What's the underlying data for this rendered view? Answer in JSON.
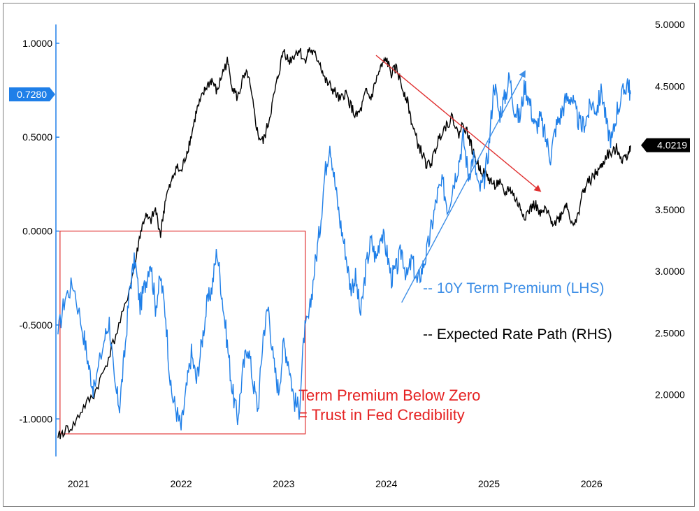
{
  "chart_data": {
    "type": "line",
    "title": "",
    "xlabel": "",
    "x_ticks": [
      "2021",
      "2022",
      "2023",
      "2024",
      "2025",
      "2026"
    ],
    "x_range": [
      2020.83,
      2026.45
    ],
    "left_axis": {
      "ticks": [
        "1.0000",
        "0.5000",
        "0.0000",
        "-0.5000",
        "-1.0000"
      ],
      "range": [
        -1.2,
        1.1
      ],
      "color": "#1f7fe8"
    },
    "right_axis": {
      "ticks": [
        "5.0000",
        "4.5000",
        "4.0000",
        "3.5000",
        "3.0000",
        "2.5000",
        "2.0000"
      ],
      "range": [
        1.5,
        5.0
      ]
    },
    "last_value_labels": {
      "left": "0.7280",
      "right": "4.0219"
    },
    "series": [
      {
        "name": "-- 10Y Term Premium (LHS)",
        "axis": "left",
        "color": "#1f7fe8",
        "points": [
          [
            2020.85,
            -0.55
          ],
          [
            2020.92,
            -0.35
          ],
          [
            2021.0,
            -0.28
          ],
          [
            2021.1,
            -0.55
          ],
          [
            2021.15,
            -0.72
          ],
          [
            2021.2,
            -0.85
          ],
          [
            2021.3,
            -0.58
          ],
          [
            2021.35,
            -0.48
          ],
          [
            2021.4,
            -0.82
          ],
          [
            2021.45,
            -0.93
          ],
          [
            2021.5,
            -0.65
          ],
          [
            2021.55,
            -0.3
          ],
          [
            2021.6,
            -0.15
          ],
          [
            2021.65,
            -0.4
          ],
          [
            2021.7,
            -0.28
          ],
          [
            2021.75,
            -0.15
          ],
          [
            2021.8,
            -0.4
          ],
          [
            2021.85,
            -0.25
          ],
          [
            2021.9,
            -0.45
          ],
          [
            2021.95,
            -0.85
          ],
          [
            2022.0,
            -0.95
          ],
          [
            2022.05,
            -1.05
          ],
          [
            2022.1,
            -0.85
          ],
          [
            2022.15,
            -0.65
          ],
          [
            2022.2,
            -0.8
          ],
          [
            2022.25,
            -0.6
          ],
          [
            2022.3,
            -0.4
          ],
          [
            2022.35,
            -0.3
          ],
          [
            2022.4,
            -0.1
          ],
          [
            2022.45,
            -0.35
          ],
          [
            2022.5,
            -0.6
          ],
          [
            2022.55,
            -0.85
          ],
          [
            2022.6,
            -1.0
          ],
          [
            2022.65,
            -0.75
          ],
          [
            2022.7,
            -0.6
          ],
          [
            2022.75,
            -0.8
          ],
          [
            2022.8,
            -0.95
          ],
          [
            2022.85,
            -0.55
          ],
          [
            2022.9,
            -0.4
          ],
          [
            2022.95,
            -0.7
          ],
          [
            2023.0,
            -0.85
          ],
          [
            2023.05,
            -0.6
          ],
          [
            2023.1,
            -0.7
          ],
          [
            2023.15,
            -0.9
          ],
          [
            2023.2,
            -0.95
          ],
          [
            2023.25,
            -0.55
          ],
          [
            2023.3,
            -0.45
          ],
          [
            2023.35,
            -0.2
          ],
          [
            2023.4,
            0.0
          ],
          [
            2023.45,
            0.3
          ],
          [
            2023.5,
            0.48
          ],
          [
            2023.55,
            0.25
          ],
          [
            2023.6,
            0.05
          ],
          [
            2023.65,
            -0.1
          ],
          [
            2023.7,
            -0.3
          ],
          [
            2023.75,
            -0.25
          ],
          [
            2023.8,
            -0.45
          ],
          [
            2023.85,
            -0.2
          ],
          [
            2023.9,
            -0.05
          ],
          [
            2023.95,
            -0.15
          ],
          [
            2024.0,
            0.0
          ],
          [
            2024.05,
            -0.1
          ],
          [
            2024.1,
            -0.25
          ],
          [
            2024.15,
            -0.2
          ],
          [
            2024.2,
            -0.1
          ],
          [
            2024.25,
            -0.25
          ],
          [
            2024.3,
            -0.15
          ],
          [
            2024.35,
            -0.28
          ],
          [
            2024.4,
            -0.2
          ],
          [
            2024.45,
            -0.1
          ],
          [
            2024.5,
            0.05
          ],
          [
            2024.55,
            0.2
          ],
          [
            2024.6,
            0.25
          ],
          [
            2024.65,
            0.12
          ],
          [
            2024.7,
            0.25
          ],
          [
            2024.75,
            0.35
          ],
          [
            2024.8,
            0.5
          ],
          [
            2024.85,
            0.3
          ],
          [
            2024.9,
            0.4
          ],
          [
            2024.95,
            0.22
          ],
          [
            2025.0,
            0.25
          ],
          [
            2025.05,
            0.45
          ],
          [
            2025.1,
            0.8
          ],
          [
            2025.15,
            0.62
          ],
          [
            2025.2,
            0.7
          ],
          [
            2025.25,
            0.82
          ],
          [
            2025.3,
            0.65
          ],
          [
            2025.35,
            0.6
          ],
          [
            2025.4,
            0.78
          ],
          [
            2025.45,
            0.68
          ],
          [
            2025.5,
            0.55
          ],
          [
            2025.55,
            0.6
          ],
          [
            2025.6,
            0.5
          ],
          [
            2025.65,
            0.4
          ],
          [
            2025.7,
            0.55
          ],
          [
            2025.75,
            0.62
          ],
          [
            2025.8,
            0.7
          ],
          [
            2025.85,
            0.72
          ],
          [
            2025.9,
            0.62
          ],
          [
            2025.95,
            0.55
          ],
          [
            2026.0,
            0.6
          ],
          [
            2026.05,
            0.68
          ],
          [
            2026.1,
            0.65
          ],
          [
            2026.15,
            0.75
          ],
          [
            2026.2,
            0.55
          ],
          [
            2026.25,
            0.48
          ],
          [
            2026.3,
            0.65
          ],
          [
            2026.35,
            0.72
          ],
          [
            2026.4,
            0.8
          ],
          [
            2026.43,
            0.73
          ]
        ]
      },
      {
        "name": "-- Expected Rate Path (RHS)",
        "axis": "right",
        "color": "#000000",
        "points": [
          [
            2020.85,
            1.65
          ],
          [
            2020.9,
            1.7
          ],
          [
            2021.0,
            1.75
          ],
          [
            2021.1,
            1.9
          ],
          [
            2021.2,
            2.0
          ],
          [
            2021.3,
            2.2
          ],
          [
            2021.4,
            2.45
          ],
          [
            2021.5,
            2.7
          ],
          [
            2021.6,
            3.05
          ],
          [
            2021.65,
            3.3
          ],
          [
            2021.7,
            3.45
          ],
          [
            2021.75,
            3.4
          ],
          [
            2021.8,
            3.5
          ],
          [
            2021.85,
            3.3
          ],
          [
            2021.9,
            3.6
          ],
          [
            2021.95,
            3.7
          ],
          [
            2022.0,
            3.85
          ],
          [
            2022.05,
            3.8
          ],
          [
            2022.1,
            3.95
          ],
          [
            2022.15,
            4.1
          ],
          [
            2022.2,
            4.3
          ],
          [
            2022.25,
            4.4
          ],
          [
            2022.3,
            4.5
          ],
          [
            2022.35,
            4.55
          ],
          [
            2022.4,
            4.45
          ],
          [
            2022.45,
            4.6
          ],
          [
            2022.5,
            4.7
          ],
          [
            2022.55,
            4.5
          ],
          [
            2022.6,
            4.4
          ],
          [
            2022.65,
            4.55
          ],
          [
            2022.7,
            4.6
          ],
          [
            2022.75,
            4.35
          ],
          [
            2022.8,
            4.1
          ],
          [
            2022.85,
            4.05
          ],
          [
            2022.9,
            4.2
          ],
          [
            2022.95,
            4.4
          ],
          [
            2023.0,
            4.6
          ],
          [
            2023.05,
            4.8
          ],
          [
            2023.1,
            4.7
          ],
          [
            2023.15,
            4.75
          ],
          [
            2023.2,
            4.8
          ],
          [
            2023.25,
            4.7
          ],
          [
            2023.3,
            4.8
          ],
          [
            2023.35,
            4.75
          ],
          [
            2023.4,
            4.7
          ],
          [
            2023.45,
            4.55
          ],
          [
            2023.5,
            4.5
          ],
          [
            2023.55,
            4.45
          ],
          [
            2023.6,
            4.38
          ],
          [
            2023.65,
            4.45
          ],
          [
            2023.7,
            4.35
          ],
          [
            2023.75,
            4.25
          ],
          [
            2023.8,
            4.3
          ],
          [
            2023.85,
            4.45
          ],
          [
            2023.9,
            4.4
          ],
          [
            2023.95,
            4.55
          ],
          [
            2024.0,
            4.65
          ],
          [
            2024.05,
            4.72
          ],
          [
            2024.1,
            4.6
          ],
          [
            2024.15,
            4.65
          ],
          [
            2024.2,
            4.5
          ],
          [
            2024.25,
            4.4
          ],
          [
            2024.3,
            4.2
          ],
          [
            2024.35,
            4.05
          ],
          [
            2024.4,
            3.95
          ],
          [
            2024.45,
            3.85
          ],
          [
            2024.5,
            3.9
          ],
          [
            2024.55,
            4.05
          ],
          [
            2024.6,
            4.15
          ],
          [
            2024.65,
            4.2
          ],
          [
            2024.7,
            4.25
          ],
          [
            2024.75,
            4.1
          ],
          [
            2024.8,
            4.2
          ],
          [
            2024.85,
            4.1
          ],
          [
            2024.9,
            3.95
          ],
          [
            2024.95,
            3.85
          ],
          [
            2025.0,
            3.8
          ],
          [
            2025.05,
            3.75
          ],
          [
            2025.1,
            3.7
          ],
          [
            2025.15,
            3.72
          ],
          [
            2025.2,
            3.62
          ],
          [
            2025.25,
            3.68
          ],
          [
            2025.3,
            3.6
          ],
          [
            2025.35,
            3.52
          ],
          [
            2025.4,
            3.45
          ],
          [
            2025.45,
            3.5
          ],
          [
            2025.5,
            3.55
          ],
          [
            2025.55,
            3.45
          ],
          [
            2025.6,
            3.5
          ],
          [
            2025.65,
            3.42
          ],
          [
            2025.7,
            3.4
          ],
          [
            2025.75,
            3.45
          ],
          [
            2025.8,
            3.55
          ],
          [
            2025.85,
            3.42
          ],
          [
            2025.9,
            3.38
          ],
          [
            2025.95,
            3.6
          ],
          [
            2026.0,
            3.7
          ],
          [
            2026.05,
            3.75
          ],
          [
            2026.1,
            3.8
          ],
          [
            2026.15,
            3.85
          ],
          [
            2026.2,
            3.95
          ],
          [
            2026.25,
            3.95
          ],
          [
            2026.3,
            4.0
          ],
          [
            2026.35,
            3.9
          ],
          [
            2026.4,
            3.95
          ],
          [
            2026.43,
            4.02
          ]
        ]
      }
    ],
    "annotations": {
      "box_text_line1": "Term Premium Below Zero",
      "box_text_line2": "= Trust in Fed Credibility",
      "box_range": {
        "x": [
          2020.87,
          2023.26
        ],
        "left_y": [
          -1.08,
          0.0
        ]
      },
      "red_arrow": {
        "from": [
          2023.95,
          4.75
        ],
        "to": [
          2025.55,
          3.65
        ],
        "axis": "right"
      },
      "blue_arrow": {
        "from": [
          2024.2,
          -0.38
        ],
        "to": [
          2025.4,
          0.85
        ],
        "axis": "left"
      }
    },
    "grid": false,
    "legend_placement": "right"
  }
}
